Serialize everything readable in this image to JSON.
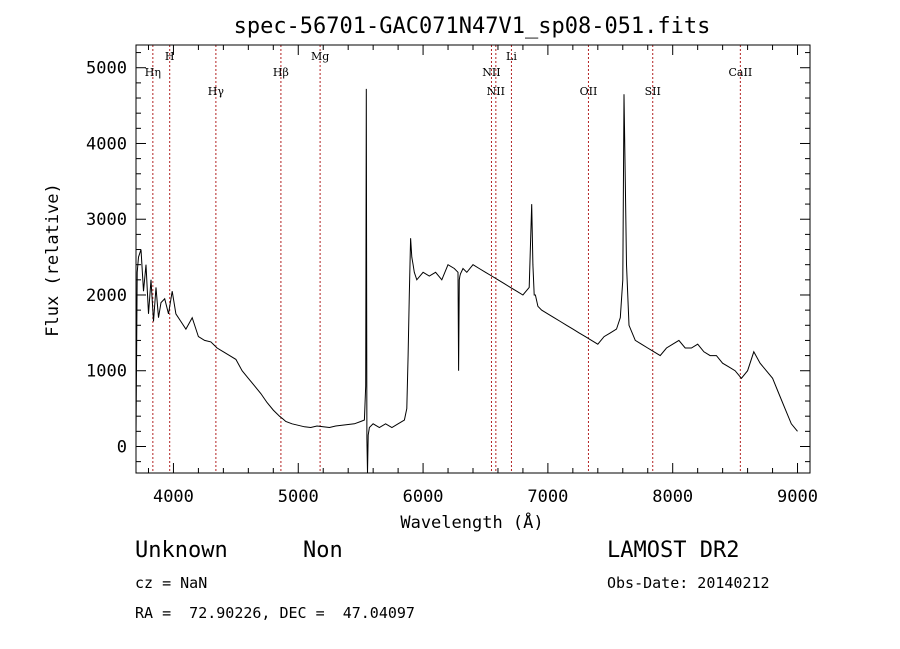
{
  "chart_data": {
    "type": "line",
    "title": "spec-56701-GAC071N47V1_sp08-051.fits",
    "xlabel": "Wavelength (Å)",
    "ylabel": "Flux (relative)",
    "xlim": [
      3700,
      9100
    ],
    "ylim": [
      -350,
      5300
    ],
    "xticks": [
      4000,
      5000,
      6000,
      7000,
      8000,
      9000
    ],
    "yticks": [
      0,
      1000,
      2000,
      3000,
      4000,
      5000
    ],
    "line_color": "#000000",
    "marker_color": "#b22222",
    "spectral_lines": [
      {
        "label": "Hη",
        "wavelength": 3835,
        "row": 1
      },
      {
        "label": "H",
        "wavelength": 3970,
        "row": 0
      },
      {
        "label": "Hγ",
        "wavelength": 4340,
        "row": 2
      },
      {
        "label": "Hβ",
        "wavelength": 4861,
        "row": 1
      },
      {
        "label": "Mg",
        "wavelength": 5175,
        "row": 0
      },
      {
        "label": "NII",
        "wavelength": 6548,
        "row": 1
      },
      {
        "label": "NII",
        "wavelength": 6583,
        "row": 2
      },
      {
        "label": "Li",
        "wavelength": 6708,
        "row": 0
      },
      {
        "label": "OII",
        "wavelength": 7325,
        "row": 2
      },
      {
        "label": "SII",
        "wavelength": 7840,
        "row": 2
      },
      {
        "label": "CaII",
        "wavelength": 8542,
        "row": 1
      }
    ],
    "series": [
      {
        "x": [
          3700,
          3710,
          3720,
          3740,
          3760,
          3780,
          3800,
          3820,
          3840,
          3860,
          3880,
          3900,
          3930,
          3960,
          3990,
          4020,
          4060,
          4100,
          4150,
          4200,
          4250,
          4300,
          4350,
          4400,
          4450,
          4500,
          4550,
          4600,
          4650,
          4700,
          4750,
          4800,
          4850,
          4880,
          4900,
          4950,
          5000,
          5050,
          5100,
          5150,
          5200,
          5250,
          5300,
          5350,
          5400,
          5450,
          5500,
          5530,
          5540,
          5545,
          5550,
          5555,
          5560,
          5570,
          5600,
          5650,
          5700,
          5750,
          5800,
          5850,
          5870,
          5880,
          5890,
          5900,
          5910,
          5920,
          5930,
          5950,
          6000,
          6050,
          6100,
          6150,
          6200,
          6250,
          6280,
          6285,
          6290,
          6295,
          6300,
          6320,
          6350,
          6400,
          6450,
          6500,
          6550,
          6600,
          6650,
          6700,
          6750,
          6800,
          6850,
          6870,
          6880,
          6890,
          6900,
          6920,
          6950,
          7000,
          7050,
          7100,
          7150,
          7200,
          7250,
          7300,
          7350,
          7400,
          7450,
          7500,
          7550,
          7580,
          7600,
          7610,
          7620,
          7630,
          7650,
          7700,
          7750,
          7800,
          7850,
          7900,
          7950,
          8000,
          8050,
          8100,
          8150,
          8200,
          8250,
          8300,
          8350,
          8400,
          8450,
          8500,
          8550,
          8600,
          8650,
          8700,
          8750,
          8800,
          8850,
          8900,
          8950,
          9000
        ],
        "y": [
          100,
          2300,
          2500,
          2600,
          2050,
          2400,
          1750,
          2200,
          1650,
          2100,
          1700,
          1900,
          1950,
          1750,
          2050,
          1750,
          1650,
          1550,
          1700,
          1450,
          1400,
          1380,
          1300,
          1250,
          1200,
          1150,
          1000,
          900,
          800,
          700,
          580,
          480,
          400,
          360,
          330,
          300,
          280,
          260,
          250,
          270,
          260,
          250,
          270,
          280,
          290,
          300,
          330,
          350,
          800,
          4720,
          100,
          -350,
          150,
          250,
          300,
          250,
          300,
          250,
          300,
          350,
          500,
          1200,
          2000,
          2750,
          2500,
          2400,
          2300,
          2200,
          2300,
          2250,
          2300,
          2200,
          2400,
          2350,
          2300,
          1000,
          2200,
          2250,
          2280,
          2350,
          2300,
          2400,
          2350,
          2300,
          2250,
          2200,
          2150,
          2100,
          2050,
          2000,
          2100,
          3200,
          2400,
          2000,
          2000,
          1850,
          1800,
          1750,
          1700,
          1650,
          1600,
          1550,
          1500,
          1450,
          1400,
          1350,
          1450,
          1500,
          1550,
          1700,
          2200,
          4650,
          3500,
          2400,
          1600,
          1400,
          1350,
          1300,
          1250,
          1200,
          1300,
          1350,
          1400,
          1300,
          1300,
          1350,
          1250,
          1200,
          1200,
          1100,
          1050,
          1000,
          900,
          1000,
          1250,
          1100,
          1000,
          900,
          700,
          500,
          300,
          200
        ]
      }
    ]
  },
  "info": {
    "object_type": "Unknown",
    "object_subtype": "Non",
    "survey": "LAMOST DR2",
    "cz": "cz = NaN",
    "obs_date": "Obs-Date: 20140212",
    "coords": "RA =  72.90226, DEC =  47.04097"
  }
}
